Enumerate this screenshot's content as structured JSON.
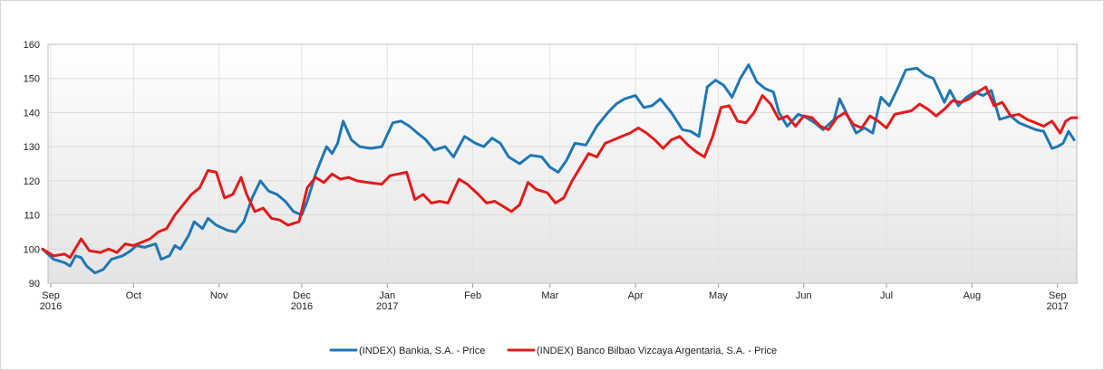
{
  "chart_data": {
    "type": "line",
    "title": "",
    "xlabel": "",
    "ylabel": "",
    "ylim": [
      90,
      160
    ],
    "yticks": [
      90,
      100,
      110,
      120,
      130,
      140,
      150,
      160
    ],
    "xlim": [
      "2016-08-31",
      "2017-09-08"
    ],
    "xticks": [
      {
        "date": "2016-09-01",
        "line1": "Sep",
        "line2": "2016"
      },
      {
        "date": "2016-10-01",
        "line1": "Oct",
        "line2": ""
      },
      {
        "date": "2016-11-01",
        "line1": "Nov",
        "line2": ""
      },
      {
        "date": "2016-12-01",
        "line1": "Dec",
        "line2": "2016"
      },
      {
        "date": "2017-01-01",
        "line1": "Jan",
        "line2": "2017"
      },
      {
        "date": "2017-02-01",
        "line1": "Feb",
        "line2": ""
      },
      {
        "date": "2017-03-01",
        "line1": "Mar",
        "line2": ""
      },
      {
        "date": "2017-04-01",
        "line1": "Apr",
        "line2": ""
      },
      {
        "date": "2017-05-01",
        "line1": "May",
        "line2": ""
      },
      {
        "date": "2017-06-01",
        "line1": "Jun",
        "line2": ""
      },
      {
        "date": "2017-07-01",
        "line1": "Jul",
        "line2": ""
      },
      {
        "date": "2017-08-01",
        "line1": "Aug",
        "line2": ""
      },
      {
        "date": "2017-09-01",
        "line1": "Sep",
        "line2": "2017"
      }
    ],
    "grid": true,
    "legend_position": "bottom",
    "series": [
      {
        "name": "(INDEX) Bankia, S.A. - Price",
        "color": "#1f77b4",
        "points": [
          [
            "2016-08-29",
            100
          ],
          [
            "2016-09-02",
            97
          ],
          [
            "2016-09-06",
            96
          ],
          [
            "2016-09-08",
            95
          ],
          [
            "2016-09-10",
            98
          ],
          [
            "2016-09-12",
            97.5
          ],
          [
            "2016-09-14",
            95
          ],
          [
            "2016-09-17",
            93
          ],
          [
            "2016-09-20",
            94
          ],
          [
            "2016-09-23",
            97
          ],
          [
            "2016-09-27",
            98
          ],
          [
            "2016-09-30",
            99.5
          ],
          [
            "2016-10-02",
            101
          ],
          [
            "2016-10-05",
            100.5
          ],
          [
            "2016-10-09",
            101.5
          ],
          [
            "2016-10-11",
            97
          ],
          [
            "2016-10-14",
            98
          ],
          [
            "2016-10-16",
            101
          ],
          [
            "2016-10-18",
            100
          ],
          [
            "2016-10-21",
            104
          ],
          [
            "2016-10-23",
            108
          ],
          [
            "2016-10-26",
            106
          ],
          [
            "2016-10-28",
            109
          ],
          [
            "2016-10-31",
            107
          ],
          [
            "2016-11-04",
            105.5
          ],
          [
            "2016-11-07",
            105
          ],
          [
            "2016-11-10",
            108
          ],
          [
            "2016-11-13",
            115
          ],
          [
            "2016-11-16",
            120
          ],
          [
            "2016-11-19",
            117
          ],
          [
            "2016-11-22",
            116
          ],
          [
            "2016-11-25",
            114
          ],
          [
            "2016-11-28",
            111
          ],
          [
            "2016-12-01",
            110
          ],
          [
            "2016-12-03",
            114
          ],
          [
            "2016-12-06",
            122
          ],
          [
            "2016-12-08",
            126
          ],
          [
            "2016-12-10",
            130
          ],
          [
            "2016-12-12",
            128
          ],
          [
            "2016-12-14",
            131
          ],
          [
            "2016-12-16",
            137.5
          ],
          [
            "2016-12-19",
            132
          ],
          [
            "2016-12-22",
            130
          ],
          [
            "2016-12-26",
            129.5
          ],
          [
            "2016-12-30",
            130
          ],
          [
            "2017-01-03",
            137
          ],
          [
            "2017-01-06",
            137.5
          ],
          [
            "2017-01-09",
            136
          ],
          [
            "2017-01-12",
            134
          ],
          [
            "2017-01-15",
            132
          ],
          [
            "2017-01-18",
            129
          ],
          [
            "2017-01-22",
            130
          ],
          [
            "2017-01-25",
            127
          ],
          [
            "2017-01-29",
            133
          ],
          [
            "2017-02-02",
            131
          ],
          [
            "2017-02-05",
            130
          ],
          [
            "2017-02-08",
            132.5
          ],
          [
            "2017-02-11",
            131
          ],
          [
            "2017-02-14",
            127
          ],
          [
            "2017-02-18",
            125
          ],
          [
            "2017-02-22",
            127.5
          ],
          [
            "2017-02-26",
            127
          ],
          [
            "2017-03-01",
            124
          ],
          [
            "2017-03-04",
            122.5
          ],
          [
            "2017-03-07",
            126
          ],
          [
            "2017-03-10",
            131
          ],
          [
            "2017-03-14",
            130.5
          ],
          [
            "2017-03-18",
            136
          ],
          [
            "2017-03-22",
            140
          ],
          [
            "2017-03-25",
            142.5
          ],
          [
            "2017-03-28",
            144
          ],
          [
            "2017-04-01",
            145
          ],
          [
            "2017-04-04",
            141.5
          ],
          [
            "2017-04-07",
            142
          ],
          [
            "2017-04-10",
            144
          ],
          [
            "2017-04-14",
            140
          ],
          [
            "2017-04-18",
            135
          ],
          [
            "2017-04-21",
            134.5
          ],
          [
            "2017-04-24",
            133
          ],
          [
            "2017-04-27",
            147.5
          ],
          [
            "2017-04-30",
            149.5
          ],
          [
            "2017-05-03",
            148
          ],
          [
            "2017-05-06",
            144.5
          ],
          [
            "2017-05-09",
            150
          ],
          [
            "2017-05-12",
            154
          ],
          [
            "2017-05-15",
            149
          ],
          [
            "2017-05-18",
            147
          ],
          [
            "2017-05-21",
            146
          ],
          [
            "2017-05-23",
            140
          ],
          [
            "2017-05-26",
            136
          ],
          [
            "2017-05-30",
            139.5
          ],
          [
            "2017-06-02",
            138.5
          ],
          [
            "2017-06-05",
            137
          ],
          [
            "2017-06-08",
            135
          ],
          [
            "2017-06-12",
            138
          ],
          [
            "2017-06-14",
            144
          ],
          [
            "2017-06-17",
            139
          ],
          [
            "2017-06-20",
            134
          ],
          [
            "2017-06-23",
            135.5
          ],
          [
            "2017-06-26",
            134
          ],
          [
            "2017-06-29",
            144.5
          ],
          [
            "2017-07-02",
            142
          ],
          [
            "2017-07-05",
            147
          ],
          [
            "2017-07-08",
            152.5
          ],
          [
            "2017-07-12",
            153
          ],
          [
            "2017-07-15",
            151
          ],
          [
            "2017-07-18",
            150
          ],
          [
            "2017-07-22",
            143
          ],
          [
            "2017-07-24",
            146.5
          ],
          [
            "2017-07-27",
            142
          ],
          [
            "2017-07-30",
            144.5
          ],
          [
            "2017-08-02",
            146
          ],
          [
            "2017-08-05",
            145
          ],
          [
            "2017-08-08",
            146.5
          ],
          [
            "2017-08-11",
            138
          ],
          [
            "2017-08-15",
            139
          ],
          [
            "2017-08-18",
            137
          ],
          [
            "2017-08-21",
            136
          ],
          [
            "2017-08-24",
            135
          ],
          [
            "2017-08-27",
            134.5
          ],
          [
            "2017-08-30",
            129.5
          ],
          [
            "2017-09-01",
            130
          ],
          [
            "2017-09-03",
            131
          ],
          [
            "2017-09-05",
            134.5
          ],
          [
            "2017-09-07",
            132
          ]
        ]
      },
      {
        "name": "(INDEX) Banco Bilbao Vizcaya Argentaria, S.A. - Price",
        "color": "#e31a1c",
        "points": [
          [
            "2016-08-29",
            100
          ],
          [
            "2016-09-02",
            98
          ],
          [
            "2016-09-06",
            98.5
          ],
          [
            "2016-09-08",
            97.5
          ],
          [
            "2016-09-12",
            103
          ],
          [
            "2016-09-15",
            99.5
          ],
          [
            "2016-09-19",
            99
          ],
          [
            "2016-09-22",
            100
          ],
          [
            "2016-09-25",
            99
          ],
          [
            "2016-09-28",
            101.5
          ],
          [
            "2016-10-01",
            101
          ],
          [
            "2016-10-04",
            102
          ],
          [
            "2016-10-07",
            103
          ],
          [
            "2016-10-10",
            105
          ],
          [
            "2016-10-13",
            106
          ],
          [
            "2016-10-16",
            110
          ],
          [
            "2016-10-19",
            113
          ],
          [
            "2016-10-22",
            116
          ],
          [
            "2016-10-25",
            118
          ],
          [
            "2016-10-28",
            123
          ],
          [
            "2016-10-31",
            122.5
          ],
          [
            "2016-11-03",
            115
          ],
          [
            "2016-11-06",
            116
          ],
          [
            "2016-11-09",
            121
          ],
          [
            "2016-11-11",
            116
          ],
          [
            "2016-11-14",
            111
          ],
          [
            "2016-11-17",
            112
          ],
          [
            "2016-11-20",
            109
          ],
          [
            "2016-11-23",
            108.5
          ],
          [
            "2016-11-26",
            107
          ],
          [
            "2016-11-30",
            108
          ],
          [
            "2016-12-03",
            118
          ],
          [
            "2016-12-06",
            121
          ],
          [
            "2016-12-09",
            119.5
          ],
          [
            "2016-12-12",
            122
          ],
          [
            "2016-12-15",
            120.5
          ],
          [
            "2016-12-18",
            121
          ],
          [
            "2016-12-21",
            120
          ],
          [
            "2016-12-25",
            119.5
          ],
          [
            "2016-12-30",
            119
          ],
          [
            "2017-01-02",
            121.5
          ],
          [
            "2017-01-05",
            122
          ],
          [
            "2017-01-08",
            122.5
          ],
          [
            "2017-01-11",
            114.5
          ],
          [
            "2017-01-14",
            116
          ],
          [
            "2017-01-17",
            113.5
          ],
          [
            "2017-01-20",
            114
          ],
          [
            "2017-01-23",
            113.5
          ],
          [
            "2017-01-27",
            120.5
          ],
          [
            "2017-01-30",
            119
          ],
          [
            "2017-02-03",
            116
          ],
          [
            "2017-02-06",
            113.5
          ],
          [
            "2017-02-09",
            114
          ],
          [
            "2017-02-12",
            112.5
          ],
          [
            "2017-02-15",
            111
          ],
          [
            "2017-02-18",
            113
          ],
          [
            "2017-02-21",
            119.5
          ],
          [
            "2017-02-24",
            117.5
          ],
          [
            "2017-02-28",
            116.5
          ],
          [
            "2017-03-03",
            113.5
          ],
          [
            "2017-03-06",
            115
          ],
          [
            "2017-03-09",
            120
          ],
          [
            "2017-03-12",
            124
          ],
          [
            "2017-03-15",
            128
          ],
          [
            "2017-03-18",
            127
          ],
          [
            "2017-03-21",
            131
          ],
          [
            "2017-03-24",
            132
          ],
          [
            "2017-03-27",
            133
          ],
          [
            "2017-03-30",
            134
          ],
          [
            "2017-04-02",
            135.5
          ],
          [
            "2017-04-05",
            134
          ],
          [
            "2017-04-08",
            132
          ],
          [
            "2017-04-11",
            129.5
          ],
          [
            "2017-04-14",
            132
          ],
          [
            "2017-04-17",
            133
          ],
          [
            "2017-04-20",
            130.5
          ],
          [
            "2017-04-23",
            128.5
          ],
          [
            "2017-04-26",
            127
          ],
          [
            "2017-04-29",
            133
          ],
          [
            "2017-05-02",
            141.5
          ],
          [
            "2017-05-05",
            142
          ],
          [
            "2017-05-08",
            137.5
          ],
          [
            "2017-05-11",
            137
          ],
          [
            "2017-05-14",
            140
          ],
          [
            "2017-05-17",
            145
          ],
          [
            "2017-05-20",
            142.5
          ],
          [
            "2017-05-23",
            138
          ],
          [
            "2017-05-26",
            139
          ],
          [
            "2017-05-29",
            136
          ],
          [
            "2017-06-01",
            139
          ],
          [
            "2017-06-04",
            138.5
          ],
          [
            "2017-06-07",
            136
          ],
          [
            "2017-06-10",
            135
          ],
          [
            "2017-06-13",
            138.5
          ],
          [
            "2017-06-16",
            140
          ],
          [
            "2017-06-19",
            136.5
          ],
          [
            "2017-06-22",
            135.5
          ],
          [
            "2017-06-25",
            139
          ],
          [
            "2017-06-28",
            137.5
          ],
          [
            "2017-07-01",
            135.5
          ],
          [
            "2017-07-04",
            139.5
          ],
          [
            "2017-07-07",
            140
          ],
          [
            "2017-07-10",
            140.5
          ],
          [
            "2017-07-13",
            142.5
          ],
          [
            "2017-07-16",
            141
          ],
          [
            "2017-07-19",
            139
          ],
          [
            "2017-07-22",
            141
          ],
          [
            "2017-07-25",
            143.5
          ],
          [
            "2017-07-28",
            143
          ],
          [
            "2017-07-31",
            144
          ],
          [
            "2017-08-03",
            146
          ],
          [
            "2017-08-06",
            147.5
          ],
          [
            "2017-08-09",
            142
          ],
          [
            "2017-08-12",
            143
          ],
          [
            "2017-08-15",
            139
          ],
          [
            "2017-08-18",
            139.5
          ],
          [
            "2017-08-21",
            138
          ],
          [
            "2017-08-24",
            137
          ],
          [
            "2017-08-27",
            136
          ],
          [
            "2017-08-30",
            137.5
          ],
          [
            "2017-09-02",
            134
          ],
          [
            "2017-09-04",
            137.5
          ],
          [
            "2017-09-06",
            138.5
          ],
          [
            "2017-09-08",
            138.5
          ]
        ]
      }
    ]
  }
}
